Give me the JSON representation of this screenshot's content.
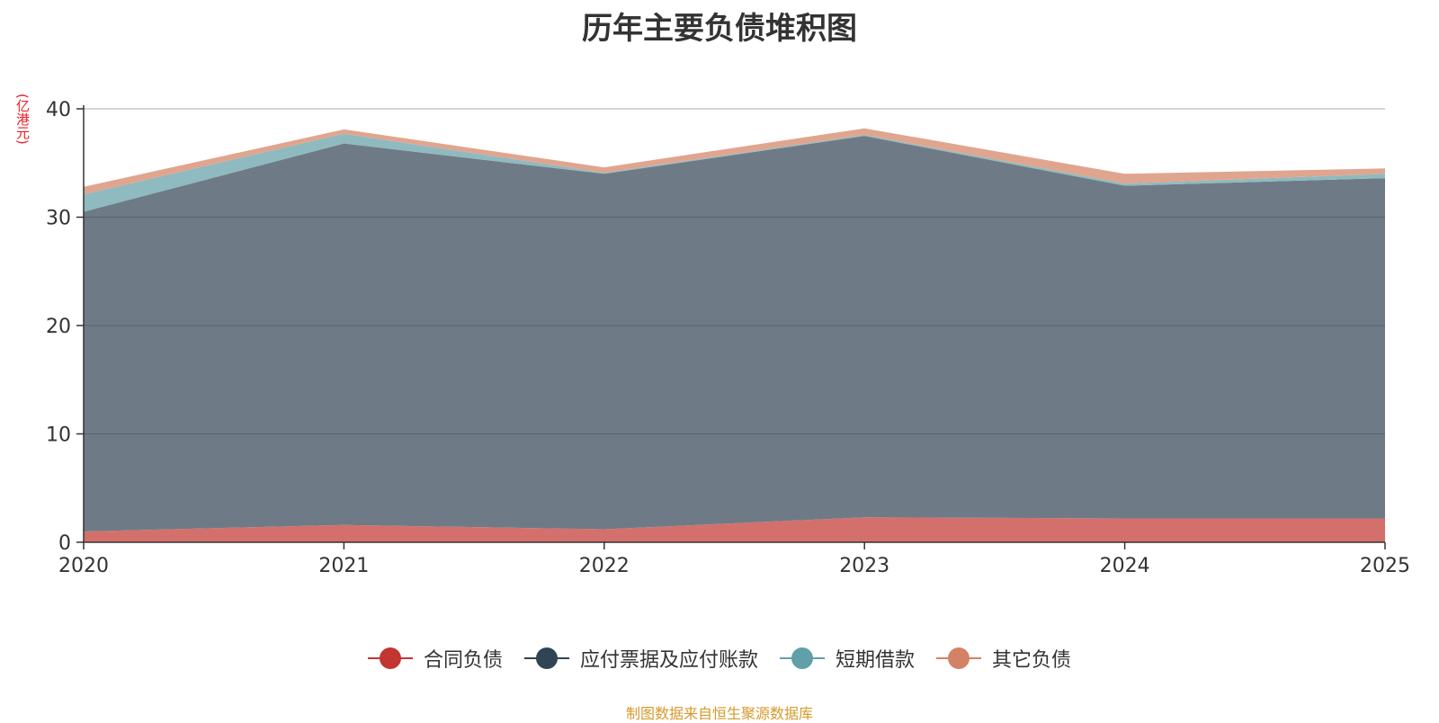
{
  "chart_data": {
    "type": "area",
    "stacked": true,
    "title": "历年主要负债堆积图",
    "unit_label": "(亿港元)",
    "x": [
      "2020",
      "2021",
      "2022",
      "2023",
      "2024",
      "2025"
    ],
    "ylim": [
      0,
      40
    ],
    "yticks": [
      "0",
      "10",
      "20",
      "30",
      "40"
    ],
    "grid": true,
    "legend_position": "bottom",
    "series": [
      {
        "name": "合同负债",
        "color": "#c23531",
        "fill": "#d4706b",
        "values": [
          1.0,
          1.6,
          1.2,
          2.3,
          2.2,
          2.2
        ]
      },
      {
        "name": "应付票据及应付账款",
        "color": "#2f4554",
        "fill": "#6e7b86",
        "values": [
          29.5,
          35.2,
          32.8,
          35.2,
          30.7,
          31.4
        ]
      },
      {
        "name": "短期借款",
        "color": "#61a0a8",
        "fill": "#8fbabf",
        "values": [
          1.6,
          0.9,
          0.1,
          0.1,
          0.2,
          0.4
        ]
      },
      {
        "name": "其它负债",
        "color": "#d48265",
        "fill": "#e0a58f",
        "values": [
          0.7,
          0.4,
          0.5,
          0.6,
          0.9,
          0.5
        ]
      }
    ]
  },
  "source_text": "制图数据来自恒生聚源数据库"
}
